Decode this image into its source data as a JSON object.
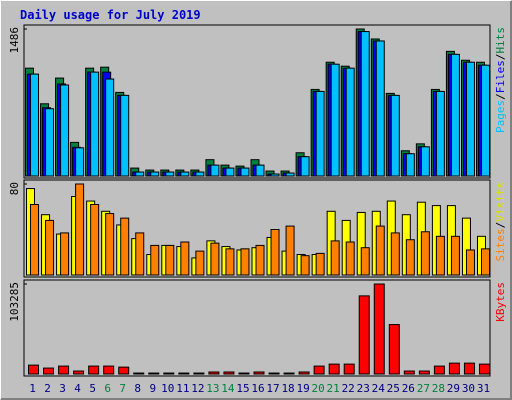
{
  "chart_data": [
    {
      "type": "bar",
      "title": "Daily usage for July 2019",
      "legend_separator": "/",
      "ylim": [
        0,
        1486
      ],
      "yticks": [
        1486
      ],
      "series": [
        {
          "name": "Hits",
          "color": "#008040",
          "values": [
            1090,
            730,
            990,
            340,
            1090,
            1100,
            845,
            80,
            60,
            60,
            60,
            60,
            165,
            110,
            100,
            165,
            50,
            50,
            235,
            875,
            1150,
            1110,
            1486,
            1385,
            835,
            255,
            325,
            875,
            1260,
            1170,
            1150
          ]
        },
        {
          "name": "Files",
          "color": "#0000ff",
          "values": [
            1030,
            690,
            930,
            290,
            1050,
            1050,
            815,
            40,
            40,
            40,
            40,
            40,
            110,
            80,
            80,
            110,
            20,
            30,
            195,
            855,
            1130,
            1090,
            1460,
            1365,
            815,
            225,
            295,
            855,
            1230,
            1150,
            1120
          ]
        },
        {
          "name": "Pages",
          "color": "#00c0ff",
          "values": [
            1030,
            680,
            920,
            285,
            1050,
            980,
            815,
            40,
            40,
            40,
            40,
            40,
            110,
            80,
            80,
            110,
            20,
            30,
            195,
            855,
            1130,
            1090,
            1460,
            1365,
            815,
            225,
            295,
            855,
            1230,
            1150,
            1120
          ]
        }
      ]
    },
    {
      "type": "bar",
      "legend_separator": "/",
      "ylim": [
        0,
        80
      ],
      "yticks": [
        80
      ],
      "series": [
        {
          "name": "Visits",
          "color": "#ffff00",
          "values": [
            76,
            53,
            36,
            69,
            65,
            56,
            44,
            32,
            18,
            26,
            25,
            15,
            30,
            25,
            22,
            24,
            33,
            21,
            18,
            18,
            56,
            48,
            55,
            56,
            65,
            53,
            64,
            61,
            61,
            50,
            34
          ]
        },
        {
          "name": "Sites",
          "color": "#ff8000",
          "values": [
            62,
            48,
            37,
            80,
            62,
            54,
            50,
            37,
            26,
            26,
            29,
            21,
            28,
            23,
            23,
            26,
            40,
            43,
            17,
            19,
            30,
            29,
            24,
            43,
            37,
            31,
            38,
            34,
            34,
            22,
            23
          ]
        }
      ]
    },
    {
      "type": "bar",
      "ylim": [
        0,
        103285
      ],
      "yticks": [
        103285
      ],
      "categories": [
        "1",
        "2",
        "3",
        "4",
        "5",
        "6",
        "7",
        "8",
        "9",
        "10",
        "11",
        "12",
        "13",
        "14",
        "15",
        "16",
        "17",
        "18",
        "19",
        "20",
        "21",
        "22",
        "23",
        "24",
        "25",
        "26",
        "27",
        "28",
        "29",
        "30",
        "31"
      ],
      "category_colors": [
        "#000080",
        "#000080",
        "#000080",
        "#000080",
        "#000080",
        "#008040",
        "#008040",
        "#000080",
        "#000080",
        "#000080",
        "#000080",
        "#000080",
        "#008040",
        "#008040",
        "#000080",
        "#000080",
        "#000080",
        "#000080",
        "#000080",
        "#008040",
        "#008040",
        "#000080",
        "#000080",
        "#000080",
        "#000080",
        "#000080",
        "#008040",
        "#008040",
        "#000080",
        "#000080",
        "#000080"
      ],
      "series": [
        {
          "name": "KBytes",
          "color": "#ff0000",
          "values": [
            10200,
            6800,
            9100,
            3400,
            9100,
            9100,
            7900,
            1100,
            1100,
            1100,
            1100,
            1100,
            2300,
            2300,
            1100,
            2300,
            1100,
            1100,
            2300,
            9100,
            11350,
            11350,
            89660,
            103285,
            56750,
            3400,
            3400,
            9100,
            12480,
            12480,
            11350
          ]
        }
      ]
    }
  ]
}
